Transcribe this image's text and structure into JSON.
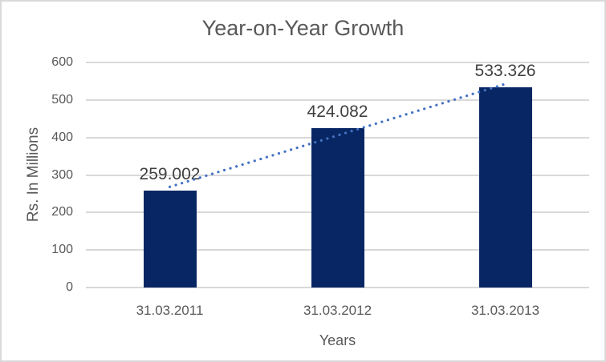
{
  "chart_data": {
    "type": "bar",
    "title": "Year-on-Year Growth",
    "xlabel": "Years",
    "ylabel": "Rs. In Millions",
    "categories": [
      "31.03.2011",
      "31.03.2012",
      "31.03.2013"
    ],
    "values": [
      259.002,
      424.082,
      533.326
    ],
    "data_labels": [
      "259.002",
      "424.082",
      "533.326"
    ],
    "ylim": [
      0,
      600
    ],
    "yticks": [
      0,
      100,
      200,
      300,
      400,
      500,
      600
    ],
    "grid": true,
    "legend": "none",
    "trendline": {
      "type": "linear",
      "style": "dotted"
    }
  },
  "colors": {
    "background": "#ffffff",
    "border": "#d9d9d9",
    "gridline": "#d9d9d9",
    "bar": "#082663",
    "trendline": "#4472C4",
    "title_text": "#595959",
    "axis_text": "#595959",
    "data_label_text": "#404040"
  }
}
